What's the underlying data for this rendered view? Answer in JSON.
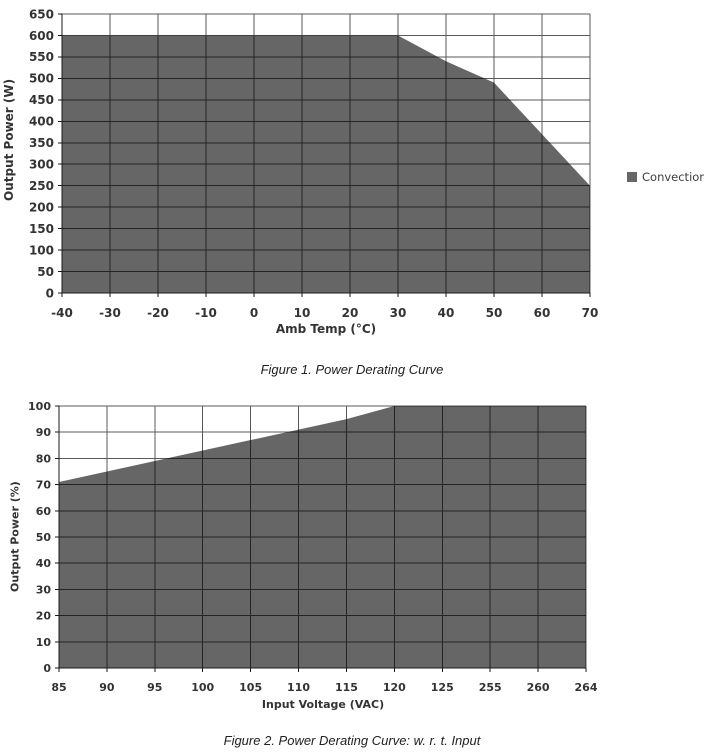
{
  "page": {
    "background": "#ffffff"
  },
  "colors": {
    "area_fill": "#666666",
    "gridline": "#5a5a5a",
    "axis_line": "#1a1a1a",
    "tick_label": "#333333",
    "caption_text": "#222222"
  },
  "chart_data": [
    {
      "id": "fig1",
      "type": "area",
      "caption": "Figure 1. Power Derating Curve",
      "xlabel": "Amb Temp (°C)",
      "ylabel": "Output Power (W)",
      "xlim": [
        -40,
        70
      ],
      "ylim": [
        0,
        650
      ],
      "x_ticks": [
        -40,
        -30,
        -20,
        -10,
        0,
        10,
        20,
        30,
        40,
        50,
        60,
        70
      ],
      "y_ticks": [
        0,
        50,
        100,
        150,
        200,
        250,
        300,
        350,
        400,
        450,
        500,
        550,
        600,
        650
      ],
      "grid": true,
      "legend": {
        "position": "right",
        "entries": [
          {
            "label": "Convection",
            "color": "#666666"
          }
        ]
      },
      "series": [
        {
          "name": "Convection",
          "fill": "#666666",
          "baseline": 0,
          "points": [
            [
              -40,
              600
            ],
            [
              30,
              600
            ],
            [
              40,
              540
            ],
            [
              50,
              490
            ],
            [
              70,
              250
            ]
          ]
        }
      ]
    },
    {
      "id": "fig2",
      "type": "area",
      "caption": "Figure 2. Power Derating Curve: w. r. t. Input",
      "xlabel": "Input Voltage (VAC)",
      "ylabel": "Output Power (%)",
      "ylim": [
        0,
        100
      ],
      "categories": [
        "85",
        "90",
        "95",
        "100",
        "105",
        "110",
        "115",
        "120",
        "125",
        "255",
        "260",
        "264"
      ],
      "y_ticks": [
        0,
        10,
        20,
        30,
        40,
        50,
        60,
        70,
        80,
        90,
        100
      ],
      "grid": true,
      "legend": null,
      "series": [
        {
          "name": "Output Power",
          "fill": "#666666",
          "baseline": 0,
          "values": [
            71,
            75,
            79,
            83,
            87,
            91,
            95,
            100,
            100,
            100,
            100,
            100
          ]
        }
      ]
    }
  ]
}
